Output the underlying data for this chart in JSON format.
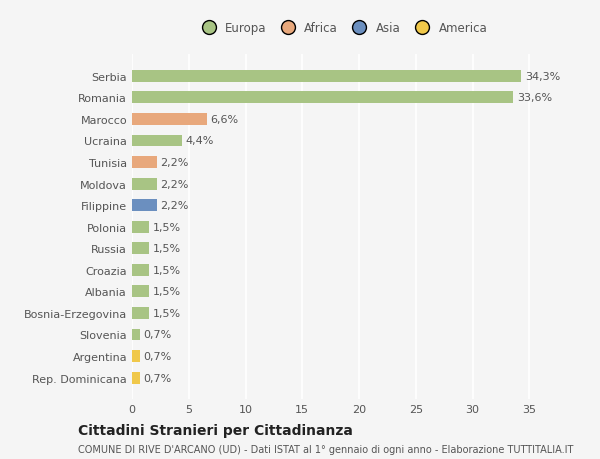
{
  "countries": [
    "Serbia",
    "Romania",
    "Marocco",
    "Ucraina",
    "Tunisia",
    "Moldova",
    "Filippine",
    "Polonia",
    "Russia",
    "Croazia",
    "Albania",
    "Bosnia-Erzegovina",
    "Slovenia",
    "Argentina",
    "Rep. Dominicana"
  ],
  "values": [
    34.3,
    33.6,
    6.6,
    4.4,
    2.2,
    2.2,
    2.2,
    1.5,
    1.5,
    1.5,
    1.5,
    1.5,
    0.7,
    0.7,
    0.7
  ],
  "labels": [
    "34,3%",
    "33,6%",
    "6,6%",
    "4,4%",
    "2,2%",
    "2,2%",
    "2,2%",
    "1,5%",
    "1,5%",
    "1,5%",
    "1,5%",
    "1,5%",
    "0,7%",
    "0,7%",
    "0,7%"
  ],
  "continents": [
    "Europa",
    "Europa",
    "Africa",
    "Europa",
    "Africa",
    "Europa",
    "Asia",
    "Europa",
    "Europa",
    "Europa",
    "Europa",
    "Europa",
    "Europa",
    "America",
    "America"
  ],
  "colors": {
    "Europa": "#a8c484",
    "Africa": "#e8a87c",
    "Asia": "#6b8fbf",
    "America": "#f0c84a"
  },
  "legend_labels": [
    "Europa",
    "Africa",
    "Asia",
    "America"
  ],
  "legend_colors": [
    "#a8c484",
    "#e8a87c",
    "#6b8fbf",
    "#f0c84a"
  ],
  "title": "Cittadini Stranieri per Cittadinanza",
  "subtitle": "COMUNE DI RIVE D'ARCANO (UD) - Dati ISTAT al 1° gennaio di ogni anno - Elaborazione TUTTITALIA.IT",
  "xlim": [
    0,
    37
  ],
  "xticks": [
    0,
    5,
    10,
    15,
    20,
    25,
    30,
    35
  ],
  "background_color": "#f5f5f5",
  "grid_color": "#ffffff",
  "bar_height": 0.55,
  "title_fontsize": 10,
  "subtitle_fontsize": 7,
  "tick_fontsize": 8,
  "label_fontsize": 8
}
